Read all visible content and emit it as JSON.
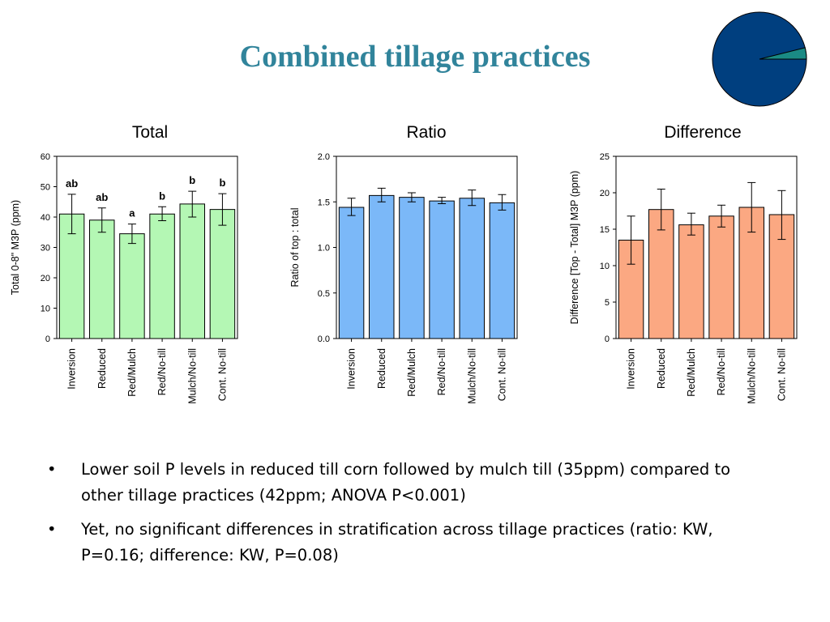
{
  "slide": {
    "title": "Combined tillage practices",
    "accent_color": "#31849b",
    "logo": {
      "icon": "pie-logo-icon",
      "colors": [
        "#003f7f",
        "#1a8a84"
      ],
      "slice_fraction": 0.06
    }
  },
  "panels": [
    {
      "title": "Total"
    },
    {
      "title": "Ratio"
    },
    {
      "title": "Difference"
    }
  ],
  "chart_data": [
    {
      "type": "bar",
      "title": "Total",
      "ylabel": "Total 0-8\" M3P (ppm)",
      "categories": [
        "Inversion",
        "Reduced",
        "Red/Mulch",
        "Red/No-till",
        "Mulch/No-till",
        "Cont. No-till"
      ],
      "values": [
        41,
        39,
        34.5,
        41,
        44.3,
        42.5
      ],
      "error_low": [
        34.5,
        35,
        31.3,
        38.8,
        40,
        37.3
      ],
      "error_high": [
        47.5,
        43,
        37.7,
        43.4,
        48.5,
        47.7
      ],
      "letters": [
        "ab",
        "ab",
        "a",
        "b",
        "b",
        "b"
      ],
      "ylim": [
        0,
        60
      ],
      "yticks": [
        "0",
        "10",
        "20",
        "30",
        "40",
        "50",
        "60"
      ],
      "color": "#b4f7b4",
      "grid": false
    },
    {
      "type": "bar",
      "title": "Ratio",
      "ylabel": "Ratio of top : total",
      "categories": [
        "Inversion",
        "Reduced",
        "Red/Mulch",
        "Red/No-till",
        "Mulch/No-till",
        "Cont. No-till"
      ],
      "values": [
        1.44,
        1.57,
        1.55,
        1.51,
        1.54,
        1.49
      ],
      "error_low": [
        1.35,
        1.5,
        1.5,
        1.48,
        1.46,
        1.41
      ],
      "error_high": [
        1.54,
        1.65,
        1.6,
        1.55,
        1.63,
        1.58
      ],
      "letters": [],
      "ylim": [
        0,
        2
      ],
      "yticks": [
        "0.0",
        "0.5",
        "1.0",
        "1.5",
        "2.0"
      ],
      "color": "#7bb8f8",
      "grid": false
    },
    {
      "type": "bar",
      "title": "Difference",
      "ylabel": "Difference [Top - Total] M3P (ppm)",
      "categories": [
        "Inversion",
        "Reduced",
        "Red/Mulch",
        "Red/No-till",
        "Mulch/No-till",
        "Cont. No-till"
      ],
      "values": [
        13.5,
        17.7,
        15.6,
        16.8,
        18,
        17
      ],
      "error_low": [
        10.2,
        14.9,
        14.2,
        15.3,
        14.6,
        13.6
      ],
      "error_high": [
        16.8,
        20.5,
        17.2,
        18.3,
        21.4,
        20.3
      ],
      "letters": [],
      "ylim": [
        0,
        25
      ],
      "yticks": [
        "0",
        "5",
        "10",
        "15",
        "20",
        "25"
      ],
      "color": "#fba882",
      "grid": false
    }
  ],
  "bullets": [
    "Lower soil P levels in reduced till corn followed by mulch till (35ppm) compared to other tillage practices (42ppm; ANOVA P<0.001)",
    "Yet, no significant differences in stratification across tillage practices (ratio: KW, P=0.16; difference: KW, P=0.08)"
  ],
  "bullet_symbol": "•"
}
